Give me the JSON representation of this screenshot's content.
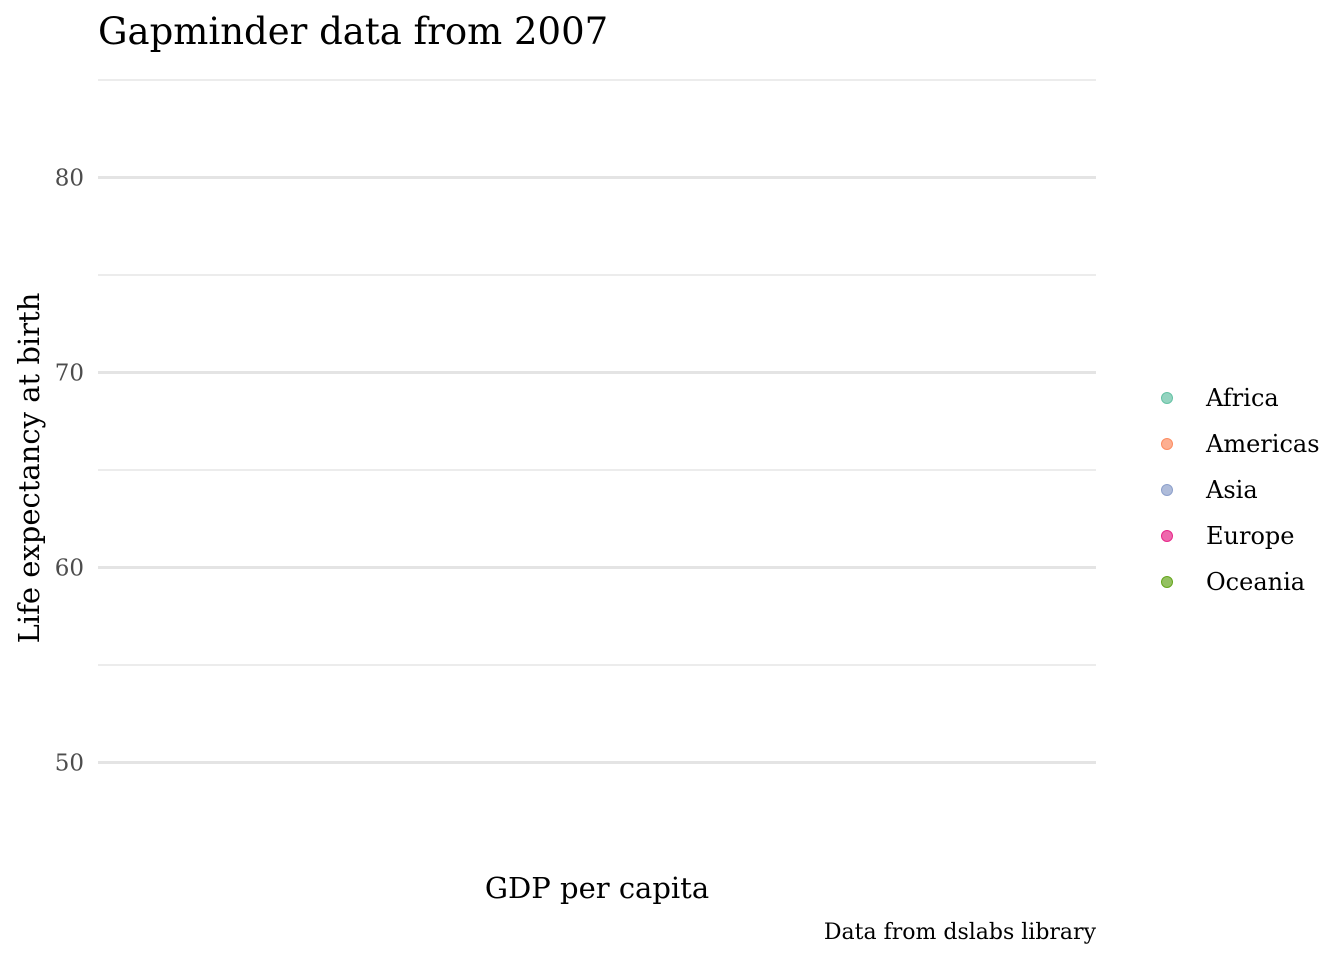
{
  "chart_data": {
    "type": "scatter",
    "title": "Gapminder data from 2007",
    "xlabel": "GDP per capita",
    "ylabel": "Life expectancy at birth",
    "caption": "Data from dslabs library",
    "ylim": [
      45,
      85
    ],
    "y_ticks": [
      50,
      60,
      70,
      80
    ],
    "y_minor_ticks": [
      55,
      65,
      75,
      85
    ],
    "x_ticks": [],
    "grid": true,
    "legend_position": "right",
    "series": [
      {
        "name": "Africa",
        "color": "#66c2a5",
        "x": [],
        "y": []
      },
      {
        "name": "Americas",
        "color": "#fc8d62",
        "x": [],
        "y": []
      },
      {
        "name": "Asia",
        "color": "#8da0cb",
        "x": [],
        "y": []
      },
      {
        "name": "Europe",
        "color": "#e7298a",
        "x": [],
        "y": []
      },
      {
        "name": "Oceania",
        "color": "#66a61e",
        "x": [],
        "y": []
      }
    ]
  }
}
